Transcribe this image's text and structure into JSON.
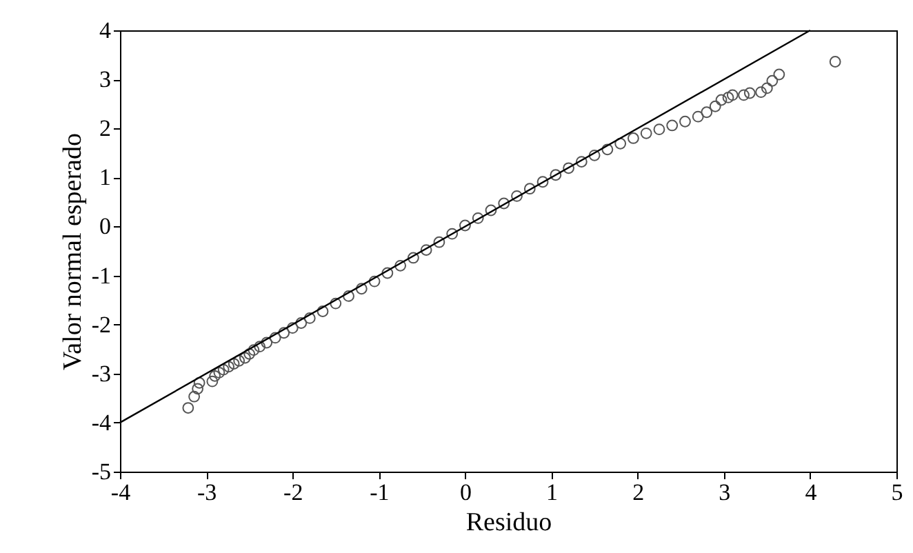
{
  "chart_data": {
    "type": "scatter",
    "xlabel": "Residuo",
    "ylabel": "Valor normal esperado",
    "xlim": [
      -4,
      5
    ],
    "ylim": [
      -5,
      4
    ],
    "xticks": [
      -4,
      -3,
      -2,
      -1,
      0,
      1,
      2,
      3,
      4,
      5
    ],
    "yticks": [
      -5,
      -4,
      -3,
      -2,
      -1,
      0,
      1,
      2,
      3,
      4
    ],
    "grid": false,
    "marker": "circle",
    "series": [
      {
        "type": "scatter",
        "color": "#555555",
        "x": [
          -3.21,
          -3.14,
          -3.1,
          -3.08,
          -2.93,
          -2.9,
          -2.85,
          -2.8,
          -2.74,
          -2.68,
          -2.62,
          -2.55,
          -2.5,
          -2.45,
          -2.38,
          -2.3,
          -2.2,
          -2.1,
          -2.0,
          -1.9,
          -1.8,
          -1.65,
          -1.5,
          -1.35,
          -1.2,
          -1.05,
          -0.9,
          -0.75,
          -0.6,
          -0.45,
          -0.3,
          -0.15,
          0.0,
          0.15,
          0.3,
          0.45,
          0.6,
          0.75,
          0.9,
          1.05,
          1.2,
          1.35,
          1.5,
          1.65,
          1.8,
          1.95,
          2.1,
          2.25,
          2.4,
          2.55,
          2.7,
          2.8,
          2.9,
          2.97,
          3.05,
          3.1,
          3.23,
          3.3,
          3.43,
          3.5,
          3.56,
          3.64,
          4.29
        ],
        "values": [
          -3.7,
          -3.47,
          -3.31,
          -3.19,
          -3.16,
          -3.05,
          -2.98,
          -2.92,
          -2.86,
          -2.8,
          -2.74,
          -2.68,
          -2.6,
          -2.52,
          -2.45,
          -2.37,
          -2.27,
          -2.17,
          -2.07,
          -1.97,
          -1.87,
          -1.73,
          -1.57,
          -1.42,
          -1.27,
          -1.12,
          -0.95,
          -0.8,
          -0.64,
          -0.48,
          -0.32,
          -0.15,
          0.02,
          0.17,
          0.33,
          0.47,
          0.62,
          0.77,
          0.91,
          1.05,
          1.19,
          1.32,
          1.45,
          1.57,
          1.69,
          1.8,
          1.9,
          1.98,
          2.06,
          2.14,
          2.24,
          2.33,
          2.45,
          2.58,
          2.63,
          2.68,
          2.68,
          2.72,
          2.74,
          2.82,
          2.97,
          3.1,
          3.36
        ]
      },
      {
        "type": "line",
        "color": "#000000",
        "x": [
          -4,
          4
        ],
        "values": [
          -4,
          4
        ],
        "line_style": "solid",
        "marker": "none"
      }
    ]
  }
}
